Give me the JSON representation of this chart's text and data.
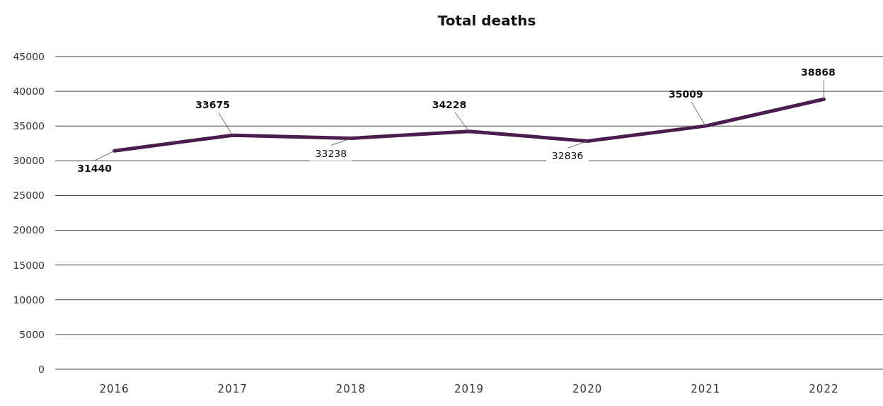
{
  "chart_data": {
    "type": "line",
    "title": "Total deaths",
    "categories": [
      "2016",
      "2017",
      "2018",
      "2019",
      "2020",
      "2021",
      "2022"
    ],
    "series": [
      {
        "color": "#4b1d4f",
        "values": [
          31440,
          33675,
          33238,
          34228,
          32836,
          35009,
          38868
        ]
      }
    ],
    "ylim": [
      0,
      45000
    ],
    "yticks": [
      0,
      5000,
      10000,
      15000,
      20000,
      25000,
      30000,
      35000,
      40000,
      45000
    ],
    "grid": "y",
    "marker": "none",
    "line_style": "solid",
    "data_labels": true
  }
}
